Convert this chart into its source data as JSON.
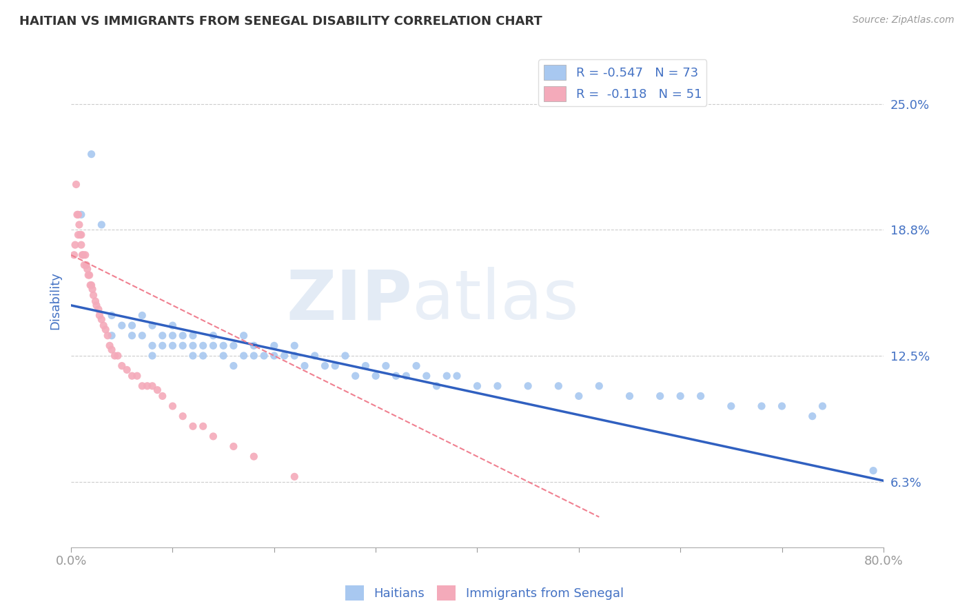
{
  "title": "HAITIAN VS IMMIGRANTS FROM SENEGAL DISABILITY CORRELATION CHART",
  "source_text": "Source: ZipAtlas.com",
  "ylabel": "Disability",
  "watermark_zip": "ZIP",
  "watermark_atlas": "atlas",
  "legend1_r": "-0.547",
  "legend1_n": "73",
  "legend2_r": "-0.118",
  "legend2_n": "51",
  "legend_label1": "Haitians",
  "legend_label2": "Immigrants from Senegal",
  "color_blue": "#A8C8F0",
  "color_pink": "#F4AABA",
  "color_blue_line": "#3060C0",
  "color_pink_line": "#F08090",
  "yticks": [
    0.0625,
    0.125,
    0.1875,
    0.25
  ],
  "ytick_labels": [
    "6.3%",
    "12.5%",
    "18.8%",
    "25.0%"
  ],
  "xlim": [
    0.0,
    0.8
  ],
  "ylim": [
    0.03,
    0.275
  ],
  "blue_scatter_x": [
    0.01,
    0.02,
    0.03,
    0.04,
    0.04,
    0.05,
    0.06,
    0.06,
    0.07,
    0.07,
    0.08,
    0.08,
    0.08,
    0.09,
    0.09,
    0.1,
    0.1,
    0.1,
    0.11,
    0.11,
    0.12,
    0.12,
    0.12,
    0.13,
    0.13,
    0.14,
    0.14,
    0.15,
    0.15,
    0.16,
    0.16,
    0.17,
    0.17,
    0.18,
    0.18,
    0.19,
    0.2,
    0.2,
    0.21,
    0.22,
    0.22,
    0.23,
    0.24,
    0.25,
    0.26,
    0.27,
    0.28,
    0.29,
    0.3,
    0.31,
    0.32,
    0.33,
    0.34,
    0.35,
    0.36,
    0.37,
    0.38,
    0.4,
    0.42,
    0.45,
    0.48,
    0.5,
    0.52,
    0.55,
    0.58,
    0.6,
    0.62,
    0.65,
    0.68,
    0.7,
    0.73,
    0.74,
    0.79
  ],
  "blue_scatter_y": [
    0.195,
    0.225,
    0.19,
    0.145,
    0.135,
    0.14,
    0.135,
    0.14,
    0.135,
    0.145,
    0.125,
    0.13,
    0.14,
    0.13,
    0.135,
    0.13,
    0.135,
    0.14,
    0.13,
    0.135,
    0.125,
    0.13,
    0.135,
    0.13,
    0.125,
    0.13,
    0.135,
    0.125,
    0.13,
    0.12,
    0.13,
    0.125,
    0.135,
    0.125,
    0.13,
    0.125,
    0.125,
    0.13,
    0.125,
    0.125,
    0.13,
    0.12,
    0.125,
    0.12,
    0.12,
    0.125,
    0.115,
    0.12,
    0.115,
    0.12,
    0.115,
    0.115,
    0.12,
    0.115,
    0.11,
    0.115,
    0.115,
    0.11,
    0.11,
    0.11,
    0.11,
    0.105,
    0.11,
    0.105,
    0.105,
    0.105,
    0.105,
    0.1,
    0.1,
    0.1,
    0.095,
    0.1,
    0.068
  ],
  "pink_scatter_x": [
    0.003,
    0.004,
    0.005,
    0.006,
    0.007,
    0.007,
    0.008,
    0.009,
    0.01,
    0.01,
    0.011,
    0.012,
    0.013,
    0.014,
    0.015,
    0.016,
    0.017,
    0.018,
    0.019,
    0.02,
    0.021,
    0.022,
    0.024,
    0.025,
    0.027,
    0.028,
    0.03,
    0.032,
    0.034,
    0.036,
    0.038,
    0.04,
    0.043,
    0.046,
    0.05,
    0.055,
    0.06,
    0.065,
    0.07,
    0.075,
    0.08,
    0.085,
    0.09,
    0.1,
    0.11,
    0.12,
    0.13,
    0.14,
    0.16,
    0.18,
    0.22
  ],
  "pink_scatter_y": [
    0.175,
    0.18,
    0.21,
    0.195,
    0.185,
    0.195,
    0.19,
    0.185,
    0.18,
    0.185,
    0.175,
    0.175,
    0.17,
    0.175,
    0.17,
    0.168,
    0.165,
    0.165,
    0.16,
    0.16,
    0.158,
    0.155,
    0.152,
    0.15,
    0.148,
    0.145,
    0.143,
    0.14,
    0.138,
    0.135,
    0.13,
    0.128,
    0.125,
    0.125,
    0.12,
    0.118,
    0.115,
    0.115,
    0.11,
    0.11,
    0.11,
    0.108,
    0.105,
    0.1,
    0.095,
    0.09,
    0.09,
    0.085,
    0.08,
    0.075,
    0.065
  ],
  "blue_trend_x": [
    0.0,
    0.8
  ],
  "blue_trend_y": [
    0.15,
    0.063
  ],
  "pink_trend_x": [
    0.0,
    0.52
  ],
  "pink_trend_y": [
    0.175,
    0.045
  ],
  "grid_color": "#CCCCCC",
  "title_color": "#333333",
  "axis_label_color": "#4472C4",
  "tick_label_color": "#4472C4",
  "xtick_show": [
    0.0,
    0.8
  ],
  "xtick_show_labels": [
    "0.0%",
    "80.0%"
  ]
}
